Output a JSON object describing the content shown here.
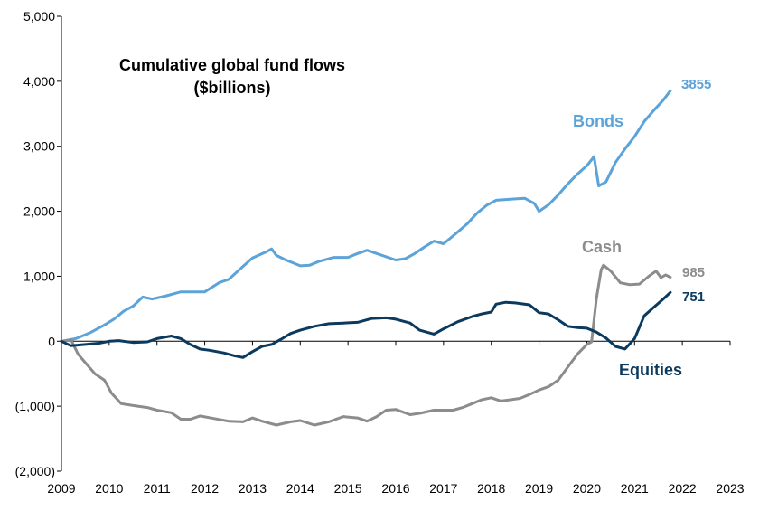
{
  "chart_data": {
    "type": "line",
    "title": "Cumulative global fund flows",
    "subtitle": "($billions)",
    "xlabel": "",
    "ylabel": "",
    "xlim": [
      2009,
      2023
    ],
    "ylim": [
      -2000,
      5000
    ],
    "grid": false,
    "x_ticks": [
      "2009",
      "2010",
      "2011",
      "2012",
      "2013",
      "2014",
      "2015",
      "2016",
      "2017",
      "2018",
      "2019",
      "2020",
      "2021",
      "2022",
      "2023"
    ],
    "y_ticks": [
      {
        "value": 5000,
        "label": "5,000"
      },
      {
        "value": 4000,
        "label": "4,000"
      },
      {
        "value": 3000,
        "label": "3,000"
      },
      {
        "value": 2000,
        "label": "2,000"
      },
      {
        "value": 1000,
        "label": "1,000"
      },
      {
        "value": 0,
        "label": "0"
      },
      {
        "value": -1000,
        "label": "(1,000)"
      },
      {
        "value": -2000,
        "label": "(2,000)"
      }
    ],
    "series": [
      {
        "name": "Bonds",
        "color": "#5ba3d9",
        "end_label": "3855",
        "points": [
          [
            2009.0,
            0
          ],
          [
            2009.3,
            40
          ],
          [
            2009.6,
            130
          ],
          [
            2009.9,
            250
          ],
          [
            2010.1,
            340
          ],
          [
            2010.3,
            460
          ],
          [
            2010.5,
            540
          ],
          [
            2010.7,
            680
          ],
          [
            2010.9,
            650
          ],
          [
            2011.2,
            700
          ],
          [
            2011.5,
            760
          ],
          [
            2011.8,
            760
          ],
          [
            2012.0,
            760
          ],
          [
            2012.3,
            900
          ],
          [
            2012.5,
            950
          ],
          [
            2012.8,
            1150
          ],
          [
            2013.0,
            1280
          ],
          [
            2013.3,
            1380
          ],
          [
            2013.4,
            1420
          ],
          [
            2013.5,
            1320
          ],
          [
            2013.7,
            1250
          ],
          [
            2014.0,
            1160
          ],
          [
            2014.2,
            1170
          ],
          [
            2014.4,
            1230
          ],
          [
            2014.7,
            1290
          ],
          [
            2015.0,
            1290
          ],
          [
            2015.2,
            1350
          ],
          [
            2015.4,
            1400
          ],
          [
            2015.6,
            1350
          ],
          [
            2015.8,
            1300
          ],
          [
            2016.0,
            1250
          ],
          [
            2016.2,
            1270
          ],
          [
            2016.4,
            1350
          ],
          [
            2016.6,
            1450
          ],
          [
            2016.8,
            1540
          ],
          [
            2017.0,
            1500
          ],
          [
            2017.2,
            1620
          ],
          [
            2017.5,
            1810
          ],
          [
            2017.7,
            1970
          ],
          [
            2017.9,
            2090
          ],
          [
            2018.1,
            2170
          ],
          [
            2018.3,
            2180
          ],
          [
            2018.5,
            2190
          ],
          [
            2018.7,
            2200
          ],
          [
            2018.9,
            2120
          ],
          [
            2019.0,
            2000
          ],
          [
            2019.2,
            2100
          ],
          [
            2019.4,
            2250
          ],
          [
            2019.6,
            2420
          ],
          [
            2019.8,
            2570
          ],
          [
            2020.0,
            2700
          ],
          [
            2020.15,
            2840
          ],
          [
            2020.25,
            2390
          ],
          [
            2020.4,
            2450
          ],
          [
            2020.6,
            2750
          ],
          [
            2020.8,
            2960
          ],
          [
            2021.0,
            3150
          ],
          [
            2021.2,
            3380
          ],
          [
            2021.4,
            3550
          ],
          [
            2021.6,
            3710
          ],
          [
            2021.75,
            3855
          ]
        ]
      },
      {
        "name": "Cash",
        "color": "#8c8c8c",
        "end_label": "985",
        "points": [
          [
            2009.0,
            0
          ],
          [
            2009.2,
            20
          ],
          [
            2009.35,
            -200
          ],
          [
            2009.5,
            -330
          ],
          [
            2009.7,
            -500
          ],
          [
            2009.9,
            -600
          ],
          [
            2010.05,
            -800
          ],
          [
            2010.25,
            -960
          ],
          [
            2010.5,
            -990
          ],
          [
            2010.8,
            -1020
          ],
          [
            2011.0,
            -1060
          ],
          [
            2011.3,
            -1100
          ],
          [
            2011.5,
            -1200
          ],
          [
            2011.7,
            -1200
          ],
          [
            2011.9,
            -1150
          ],
          [
            2012.2,
            -1190
          ],
          [
            2012.5,
            -1230
          ],
          [
            2012.8,
            -1240
          ],
          [
            2013.0,
            -1180
          ],
          [
            2013.2,
            -1230
          ],
          [
            2013.5,
            -1290
          ],
          [
            2013.8,
            -1240
          ],
          [
            2014.0,
            -1220
          ],
          [
            2014.3,
            -1290
          ],
          [
            2014.6,
            -1240
          ],
          [
            2014.9,
            -1160
          ],
          [
            2015.2,
            -1180
          ],
          [
            2015.4,
            -1230
          ],
          [
            2015.6,
            -1160
          ],
          [
            2015.8,
            -1060
          ],
          [
            2016.0,
            -1050
          ],
          [
            2016.3,
            -1130
          ],
          [
            2016.5,
            -1110
          ],
          [
            2016.8,
            -1060
          ],
          [
            2017.0,
            -1060
          ],
          [
            2017.2,
            -1060
          ],
          [
            2017.4,
            -1020
          ],
          [
            2017.6,
            -960
          ],
          [
            2017.8,
            -900
          ],
          [
            2018.0,
            -870
          ],
          [
            2018.2,
            -920
          ],
          [
            2018.4,
            -900
          ],
          [
            2018.6,
            -880
          ],
          [
            2018.8,
            -820
          ],
          [
            2019.0,
            -750
          ],
          [
            2019.2,
            -700
          ],
          [
            2019.4,
            -600
          ],
          [
            2019.6,
            -400
          ],
          [
            2019.8,
            -200
          ],
          [
            2020.0,
            -50
          ],
          [
            2020.1,
            -10
          ],
          [
            2020.2,
            650
          ],
          [
            2020.3,
            1100
          ],
          [
            2020.35,
            1170
          ],
          [
            2020.5,
            1080
          ],
          [
            2020.7,
            900
          ],
          [
            2020.9,
            870
          ],
          [
            2021.1,
            880
          ],
          [
            2021.3,
            1000
          ],
          [
            2021.45,
            1080
          ],
          [
            2021.55,
            980
          ],
          [
            2021.65,
            1020
          ],
          [
            2021.75,
            985
          ]
        ]
      },
      {
        "name": "Equities",
        "color": "#0b3a5e",
        "end_label": "751",
        "points": [
          [
            2009.0,
            0
          ],
          [
            2009.2,
            -70
          ],
          [
            2009.5,
            -50
          ],
          [
            2009.8,
            -30
          ],
          [
            2010.0,
            0
          ],
          [
            2010.2,
            10
          ],
          [
            2010.5,
            -20
          ],
          [
            2010.8,
            -10
          ],
          [
            2011.0,
            40
          ],
          [
            2011.3,
            80
          ],
          [
            2011.5,
            40
          ],
          [
            2011.7,
            -50
          ],
          [
            2011.9,
            -120
          ],
          [
            2012.1,
            -140
          ],
          [
            2012.4,
            -180
          ],
          [
            2012.6,
            -220
          ],
          [
            2012.8,
            -250
          ],
          [
            2013.0,
            -160
          ],
          [
            2013.2,
            -80
          ],
          [
            2013.4,
            -50
          ],
          [
            2013.6,
            30
          ],
          [
            2013.8,
            120
          ],
          [
            2014.0,
            170
          ],
          [
            2014.3,
            230
          ],
          [
            2014.6,
            270
          ],
          [
            2014.9,
            280
          ],
          [
            2015.2,
            290
          ],
          [
            2015.5,
            350
          ],
          [
            2015.8,
            360
          ],
          [
            2016.0,
            340
          ],
          [
            2016.3,
            280
          ],
          [
            2016.5,
            170
          ],
          [
            2016.8,
            110
          ],
          [
            2017.0,
            190
          ],
          [
            2017.3,
            300
          ],
          [
            2017.6,
            380
          ],
          [
            2017.8,
            420
          ],
          [
            2018.0,
            450
          ],
          [
            2018.1,
            570
          ],
          [
            2018.3,
            600
          ],
          [
            2018.5,
            590
          ],
          [
            2018.8,
            560
          ],
          [
            2019.0,
            440
          ],
          [
            2019.2,
            420
          ],
          [
            2019.4,
            330
          ],
          [
            2019.6,
            230
          ],
          [
            2019.8,
            210
          ],
          [
            2020.0,
            200
          ],
          [
            2020.2,
            140
          ],
          [
            2020.4,
            50
          ],
          [
            2020.6,
            -80
          ],
          [
            2020.8,
            -120
          ],
          [
            2021.0,
            40
          ],
          [
            2021.2,
            390
          ],
          [
            2021.4,
            520
          ],
          [
            2021.6,
            650
          ],
          [
            2021.75,
            751
          ]
        ]
      }
    ]
  }
}
